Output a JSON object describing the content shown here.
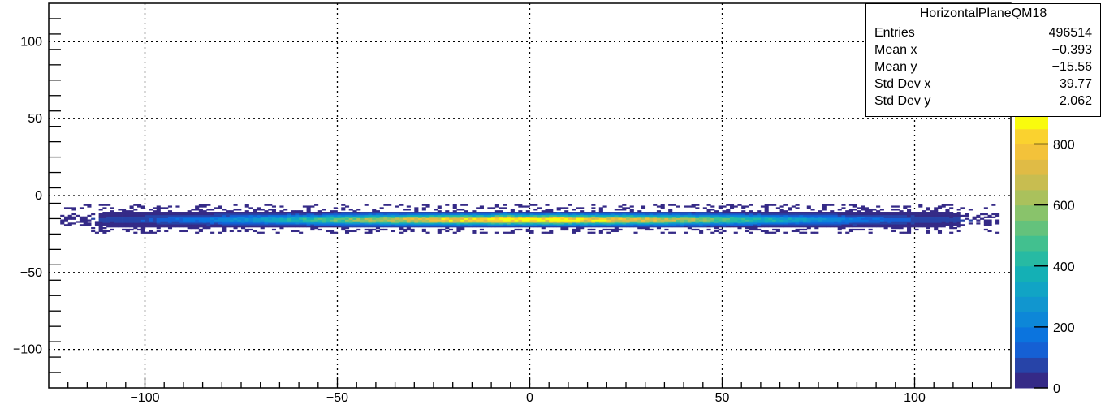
{
  "chart_data": {
    "type": "heatmap",
    "title": "",
    "xlabel": "",
    "ylabel": "",
    "xlim": [
      -125,
      125
    ],
    "ylim": [
      -125,
      125
    ],
    "x_ticks": [
      -100,
      -50,
      0,
      50,
      100
    ],
    "x_tick_labels": [
      "−100",
      "−50",
      "0",
      "50",
      "100"
    ],
    "y_ticks": [
      100,
      50,
      0,
      -50,
      -100
    ],
    "y_tick_labels": [
      "100",
      "50",
      "0",
      "−50",
      "−100"
    ],
    "grid": true,
    "bin_width": 1,
    "band": {
      "y_center": -15.56,
      "y_std_dev": 2.062,
      "x_extent": [
        -122,
        122
      ],
      "peak_x_abs": [
        5,
        10
      ],
      "max_count": 900
    },
    "colorbar": {
      "min": 0,
      "max": 900,
      "ticks": [
        0,
        200,
        400,
        600,
        800
      ],
      "tick_labels": [
        "0",
        "200",
        "400",
        "600",
        "800"
      ],
      "palette": [
        "#352a87",
        "#2744a8",
        "#1560d4",
        "#0b74de",
        "#0d87d8",
        "#1196cf",
        "#11a4c5",
        "#14b0b5",
        "#27baa3",
        "#42c08f",
        "#64c27c",
        "#89c36b",
        "#aac15c",
        "#c8bd50",
        "#e0bb45",
        "#f3c23a",
        "#fad22f",
        "#f9fb0e"
      ]
    },
    "stats_box": {
      "title": "HorizontalPlaneQM18",
      "rows": [
        {
          "label": "Entries",
          "value": "496514"
        },
        {
          "label": "Mean x",
          "value": "−0.393"
        },
        {
          "label": "Mean y",
          "value": "−15.56"
        },
        {
          "label": "Std Dev x",
          "value": "39.77"
        },
        {
          "label": "Std Dev y",
          "value": "2.062"
        }
      ]
    }
  }
}
